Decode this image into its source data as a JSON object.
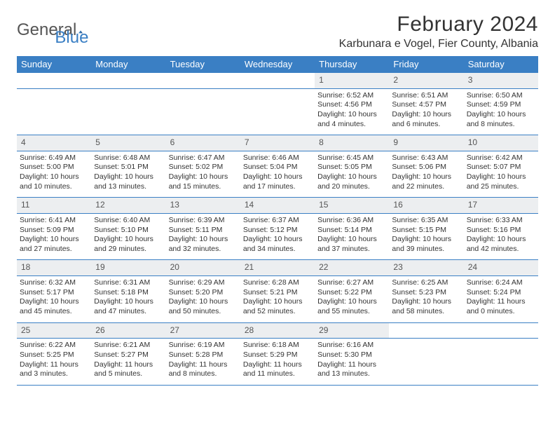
{
  "logo": {
    "general": "General",
    "blue": "Blue"
  },
  "title": "February 2024",
  "location": "Karbunara e Vogel, Fier County, Albania",
  "colors": {
    "accent": "#3a7fc4",
    "daynum_bg": "#eceef0",
    "text": "#333333"
  },
  "weekdays": [
    "Sunday",
    "Monday",
    "Tuesday",
    "Wednesday",
    "Thursday",
    "Friday",
    "Saturday"
  ],
  "weeks": [
    [
      null,
      null,
      null,
      null,
      {
        "n": "1",
        "sunrise": "6:52 AM",
        "sunset": "4:56 PM",
        "daylight": "10 hours and 4 minutes."
      },
      {
        "n": "2",
        "sunrise": "6:51 AM",
        "sunset": "4:57 PM",
        "daylight": "10 hours and 6 minutes."
      },
      {
        "n": "3",
        "sunrise": "6:50 AM",
        "sunset": "4:59 PM",
        "daylight": "10 hours and 8 minutes."
      }
    ],
    [
      {
        "n": "4",
        "sunrise": "6:49 AM",
        "sunset": "5:00 PM",
        "daylight": "10 hours and 10 minutes."
      },
      {
        "n": "5",
        "sunrise": "6:48 AM",
        "sunset": "5:01 PM",
        "daylight": "10 hours and 13 minutes."
      },
      {
        "n": "6",
        "sunrise": "6:47 AM",
        "sunset": "5:02 PM",
        "daylight": "10 hours and 15 minutes."
      },
      {
        "n": "7",
        "sunrise": "6:46 AM",
        "sunset": "5:04 PM",
        "daylight": "10 hours and 17 minutes."
      },
      {
        "n": "8",
        "sunrise": "6:45 AM",
        "sunset": "5:05 PM",
        "daylight": "10 hours and 20 minutes."
      },
      {
        "n": "9",
        "sunrise": "6:43 AM",
        "sunset": "5:06 PM",
        "daylight": "10 hours and 22 minutes."
      },
      {
        "n": "10",
        "sunrise": "6:42 AM",
        "sunset": "5:07 PM",
        "daylight": "10 hours and 25 minutes."
      }
    ],
    [
      {
        "n": "11",
        "sunrise": "6:41 AM",
        "sunset": "5:09 PM",
        "daylight": "10 hours and 27 minutes."
      },
      {
        "n": "12",
        "sunrise": "6:40 AM",
        "sunset": "5:10 PM",
        "daylight": "10 hours and 29 minutes."
      },
      {
        "n": "13",
        "sunrise": "6:39 AM",
        "sunset": "5:11 PM",
        "daylight": "10 hours and 32 minutes."
      },
      {
        "n": "14",
        "sunrise": "6:37 AM",
        "sunset": "5:12 PM",
        "daylight": "10 hours and 34 minutes."
      },
      {
        "n": "15",
        "sunrise": "6:36 AM",
        "sunset": "5:14 PM",
        "daylight": "10 hours and 37 minutes."
      },
      {
        "n": "16",
        "sunrise": "6:35 AM",
        "sunset": "5:15 PM",
        "daylight": "10 hours and 39 minutes."
      },
      {
        "n": "17",
        "sunrise": "6:33 AM",
        "sunset": "5:16 PM",
        "daylight": "10 hours and 42 minutes."
      }
    ],
    [
      {
        "n": "18",
        "sunrise": "6:32 AM",
        "sunset": "5:17 PM",
        "daylight": "10 hours and 45 minutes."
      },
      {
        "n": "19",
        "sunrise": "6:31 AM",
        "sunset": "5:18 PM",
        "daylight": "10 hours and 47 minutes."
      },
      {
        "n": "20",
        "sunrise": "6:29 AM",
        "sunset": "5:20 PM",
        "daylight": "10 hours and 50 minutes."
      },
      {
        "n": "21",
        "sunrise": "6:28 AM",
        "sunset": "5:21 PM",
        "daylight": "10 hours and 52 minutes."
      },
      {
        "n": "22",
        "sunrise": "6:27 AM",
        "sunset": "5:22 PM",
        "daylight": "10 hours and 55 minutes."
      },
      {
        "n": "23",
        "sunrise": "6:25 AM",
        "sunset": "5:23 PM",
        "daylight": "10 hours and 58 minutes."
      },
      {
        "n": "24",
        "sunrise": "6:24 AM",
        "sunset": "5:24 PM",
        "daylight": "11 hours and 0 minutes."
      }
    ],
    [
      {
        "n": "25",
        "sunrise": "6:22 AM",
        "sunset": "5:25 PM",
        "daylight": "11 hours and 3 minutes."
      },
      {
        "n": "26",
        "sunrise": "6:21 AM",
        "sunset": "5:27 PM",
        "daylight": "11 hours and 5 minutes."
      },
      {
        "n": "27",
        "sunrise": "6:19 AM",
        "sunset": "5:28 PM",
        "daylight": "11 hours and 8 minutes."
      },
      {
        "n": "28",
        "sunrise": "6:18 AM",
        "sunset": "5:29 PM",
        "daylight": "11 hours and 11 minutes."
      },
      {
        "n": "29",
        "sunrise": "6:16 AM",
        "sunset": "5:30 PM",
        "daylight": "11 hours and 13 minutes."
      },
      null,
      null
    ]
  ]
}
